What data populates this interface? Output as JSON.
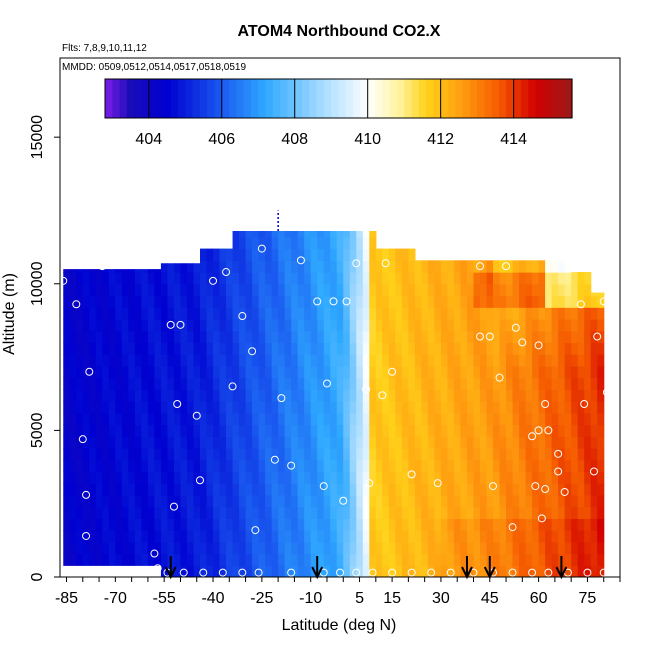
{
  "figure": {
    "title": "ATOM4 Northbound CO2.X",
    "flights_line": "Flts: 7,8,9,10,11,12",
    "mmdd_line": "MMDD: 0509,0512,0514,0517,0518,0519"
  },
  "chart_data": {
    "type": "heatmap",
    "title": "ATOM4 Northbound CO2.X",
    "xlabel": "Latitude (deg N)",
    "ylabel": "Altitude (m)",
    "xlim": [
      -87,
      85
    ],
    "ylim": [
      0,
      17700
    ],
    "x_ticks": [
      -85,
      -70,
      -55,
      -40,
      -25,
      -10,
      5,
      15,
      30,
      45,
      60,
      75
    ],
    "y_ticks": [
      0,
      5000,
      10000,
      15000
    ],
    "grid": false,
    "colorbar": {
      "position": "top",
      "range": [
        402.8,
        415.6
      ],
      "ticks": [
        404,
        406,
        408,
        410,
        412,
        414
      ],
      "colors": [
        "#7c1de8",
        "#1a0db8",
        "#0000d0",
        "#1a5af0",
        "#2fa9ff",
        "#9bd6ff",
        "#ffffff",
        "#fff29a",
        "#ffd21a",
        "#ff9c10",
        "#f55a00",
        "#d20000",
        "#9a1a1a"
      ],
      "color_positions": [
        402.8,
        403.5,
        404.5,
        406.0,
        407.2,
        408.6,
        410.0,
        410.9,
        411.6,
        412.6,
        413.6,
        414.6,
        415.6
      ]
    },
    "field_description": "CO2 (ppm) versus latitude and altitude",
    "ceiling_m": [
      {
        "lat_from": -86,
        "lat_to": -57,
        "alt": 10500
      },
      {
        "lat_from": -57,
        "lat_to": -45,
        "alt": 10700
      },
      {
        "lat_from": -45,
        "lat_to": -35,
        "alt": 11200
      },
      {
        "lat_from": -35,
        "lat_to": 10,
        "alt": 11800
      },
      {
        "lat_from": 10,
        "lat_to": 22,
        "alt": 11200
      },
      {
        "lat_from": 22,
        "lat_to": 70,
        "alt": 10800
      },
      {
        "lat_from": 70,
        "lat_to": 76,
        "alt": 10400
      },
      {
        "lat_from": 76,
        "lat_to": 80,
        "alt": 9700
      }
    ],
    "sample_points": [
      [
        -86,
        10100
      ],
      [
        -82,
        9300
      ],
      [
        -80,
        4700
      ],
      [
        -79,
        2800
      ],
      [
        -79,
        1400
      ],
      [
        -78,
        7000
      ],
      [
        -74,
        10600
      ],
      [
        -58,
        800
      ],
      [
        -57,
        300
      ],
      [
        -53,
        8600
      ],
      [
        -52,
        2400
      ],
      [
        -51,
        5900
      ],
      [
        -50,
        8600
      ],
      [
        -45,
        5500
      ],
      [
        -44,
        3300
      ],
      [
        -40,
        10100
      ],
      [
        -36,
        10400
      ],
      [
        -34,
        6500
      ],
      [
        -31,
        8900
      ],
      [
        -28,
        7700
      ],
      [
        -27,
        1600
      ],
      [
        -25,
        11200
      ],
      [
        -21,
        4000
      ],
      [
        -19,
        6100
      ],
      [
        -16,
        3800
      ],
      [
        -13,
        10800
      ],
      [
        -8,
        9400
      ],
      [
        -6,
        3100
      ],
      [
        -5,
        6600
      ],
      [
        -3,
        9400
      ],
      [
        0,
        2600
      ],
      [
        1,
        9400
      ],
      [
        4,
        10700
      ],
      [
        7,
        6400
      ],
      [
        8,
        3200
      ],
      [
        12,
        6200
      ],
      [
        13,
        10700
      ],
      [
        15,
        7000
      ],
      [
        21,
        3500
      ],
      [
        29,
        3200
      ],
      [
        42,
        10600
      ],
      [
        42,
        8200
      ],
      [
        45,
        8200
      ],
      [
        46,
        3100
      ],
      [
        48,
        6800
      ],
      [
        50,
        10600
      ],
      [
        52,
        1700
      ],
      [
        53,
        8500
      ],
      [
        55,
        8000
      ],
      [
        58,
        4800
      ],
      [
        59,
        3100
      ],
      [
        60,
        7900
      ],
      [
        60,
        5000
      ],
      [
        61,
        2000
      ],
      [
        62,
        5900
      ],
      [
        62,
        3000
      ],
      [
        63,
        5000
      ],
      [
        66,
        4200
      ],
      [
        66,
        3600
      ],
      [
        68,
        2900
      ],
      [
        73,
        9300
      ],
      [
        74,
        5900
      ],
      [
        76,
        10800
      ],
      [
        77,
        3600
      ],
      [
        78,
        8200
      ],
      [
        80,
        9400
      ],
      [
        81,
        6300
      ]
    ],
    "surface_points": [
      -54,
      -49,
      -43,
      -37,
      -31,
      -26,
      -16,
      -6,
      -1,
      4,
      9,
      15,
      21,
      27,
      33,
      40,
      46,
      52,
      58,
      63,
      69,
      75,
      80
    ],
    "arrow_latitudes": [
      -53,
      -8,
      38,
      45,
      67
    ],
    "top_marker_latitude": -20
  }
}
